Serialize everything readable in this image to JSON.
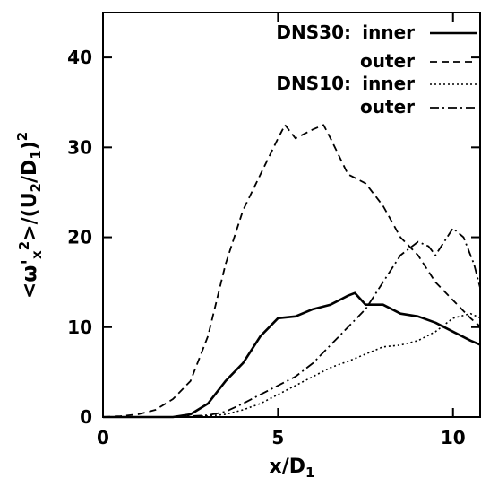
{
  "chart_data": {
    "type": "line",
    "title": "",
    "xlabel": "x/D",
    "xlabel_sub": "1",
    "ylabel": "<ω'x2>/(U2/D1)2",
    "xlim": [
      0,
      10.8
    ],
    "ylim": [
      0,
      45
    ],
    "xticks": [
      0,
      5,
      10
    ],
    "yticks": [
      0,
      10,
      20,
      30,
      40
    ],
    "xtick_labels": [
      "0",
      "5",
      "10"
    ],
    "ytick_labels": [
      "0",
      "10",
      "20",
      "30",
      "40"
    ],
    "grid": false,
    "legend_position": "top-right",
    "legend_groups": [
      {
        "label": "DNS30:",
        "entries": [
          "inner",
          "outer"
        ]
      },
      {
        "label": "DNS10:",
        "entries": [
          "inner",
          "outer"
        ]
      }
    ],
    "series": [
      {
        "group": "DNS30",
        "name": "inner",
        "style": "solid",
        "x": [
          0,
          1,
          2,
          2.5,
          3,
          3.5,
          4,
          4.5,
          5,
          5.5,
          6,
          6.5,
          7,
          7.2,
          7.5,
          8,
          8.5,
          9,
          9.5,
          10,
          10.5,
          10.8
        ],
        "y": [
          0,
          0,
          0,
          0.3,
          1.5,
          4,
          6,
          9,
          11,
          11.2,
          12,
          12.5,
          13.5,
          13.8,
          12.5,
          12.5,
          11.5,
          11.2,
          10.5,
          9.5,
          8.5,
          8
        ]
      },
      {
        "group": "DNS30",
        "name": "outer",
        "style": "dashed",
        "x": [
          0,
          0.5,
          1,
          1.5,
          2,
          2.5,
          3,
          3.5,
          4,
          4.5,
          5,
          5.2,
          5.5,
          6,
          6.3,
          6.5,
          7,
          7.5,
          8,
          8.5,
          9,
          9.5,
          10,
          10.5,
          10.8
        ],
        "y": [
          0,
          0.1,
          0.3,
          0.8,
          2,
          4,
          9,
          17,
          23,
          27,
          31,
          32.5,
          31,
          32,
          32.5,
          31,
          27,
          26,
          23.5,
          20,
          18,
          15,
          13,
          11,
          10
        ]
      },
      {
        "group": "DNS10",
        "name": "inner",
        "style": "dotted",
        "x": [
          0,
          2,
          3,
          3.5,
          4,
          4.5,
          5,
          5.5,
          6,
          6.5,
          7,
          7.5,
          8,
          8.5,
          9,
          9.5,
          10,
          10.5,
          10.8
        ],
        "y": [
          0,
          0,
          0.1,
          0.3,
          0.8,
          1.5,
          2.5,
          3.5,
          4.5,
          5.5,
          6.2,
          7,
          7.8,
          8,
          8.5,
          9.5,
          11,
          11.5,
          11
        ]
      },
      {
        "group": "DNS10",
        "name": "outer",
        "style": "dashdot",
        "x": [
          0,
          2,
          3,
          3.5,
          4,
          4.5,
          5,
          5.5,
          6,
          6.5,
          7,
          7.5,
          8,
          8.5,
          9,
          9.3,
          9.5,
          10,
          10.3,
          10.6,
          10.8
        ],
        "y": [
          0,
          0,
          0.2,
          0.6,
          1.5,
          2.5,
          3.5,
          4.5,
          6,
          8,
          10,
          12,
          15,
          18,
          19.5,
          19,
          18,
          21,
          20,
          17,
          14
        ]
      }
    ]
  }
}
